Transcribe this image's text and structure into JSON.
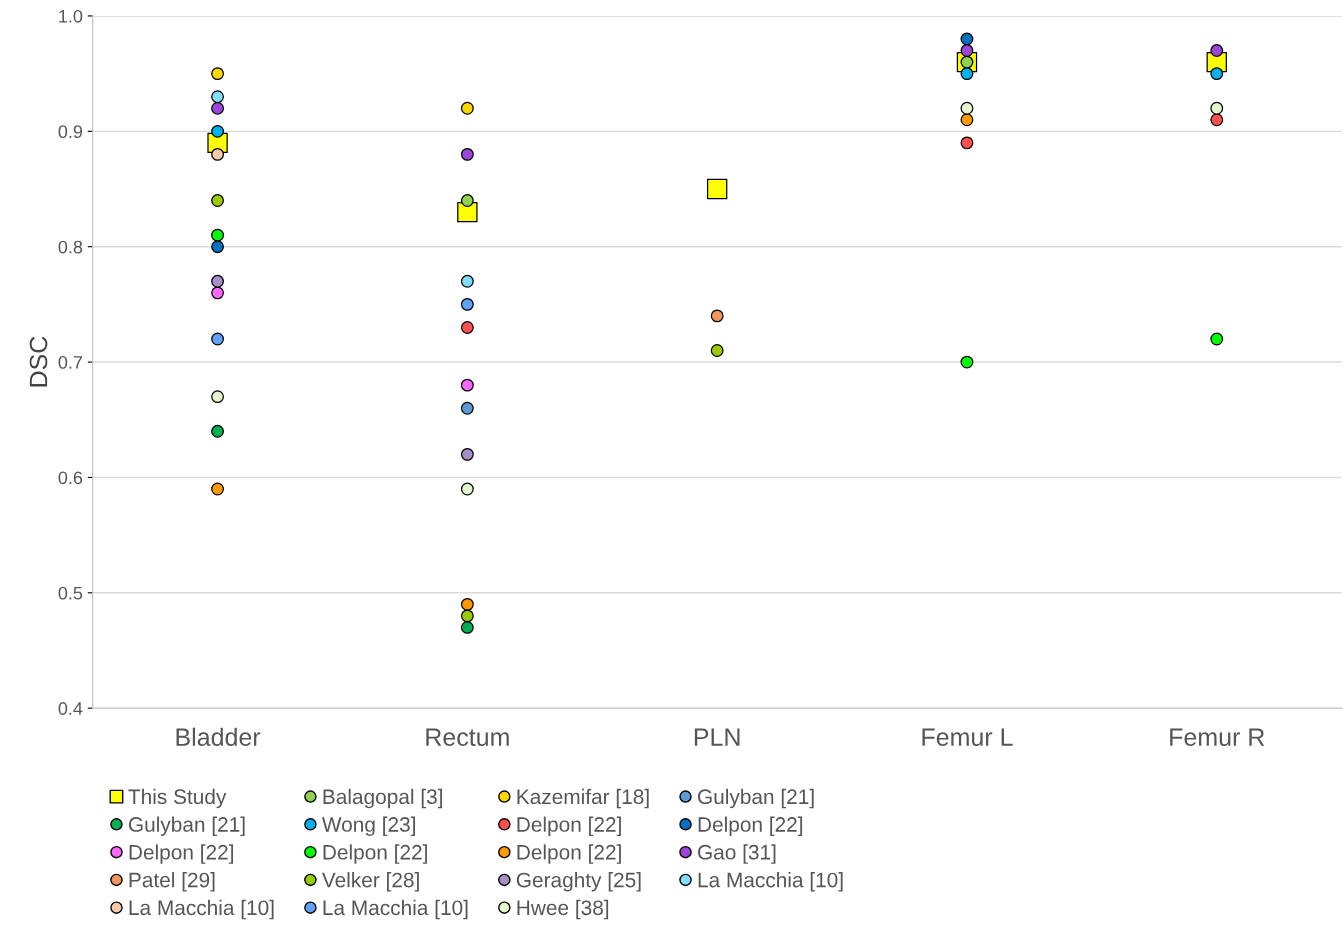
{
  "chart_data": {
    "type": "scatter",
    "ylabel": "DSC",
    "categories": [
      "Bladder",
      "Rectum",
      "PLN",
      "Femur L",
      "Femur R"
    ],
    "ylim": [
      0.4,
      1.0
    ],
    "yticks": [
      0.4,
      0.5,
      0.6,
      0.7,
      0.8,
      0.9,
      {
        "value": 1,
        "label": "1.0"
      }
    ],
    "grid": "y",
    "legend": "bottom",
    "marker": "circle",
    "series": [
      {
        "name": "This Study",
        "color": "#ffff00",
        "marker": "square",
        "values": [
          0.89,
          0.83,
          0.85,
          0.96,
          0.96
        ]
      },
      {
        "name": "Balagopal [3]",
        "color": "#92d050",
        "values": [
          null,
          0.84,
          null,
          0.96,
          null
        ]
      },
      {
        "name": "Kazemifar [18]",
        "color": "#ffd700",
        "values": [
          0.95,
          0.92,
          null,
          null,
          null
        ]
      },
      {
        "name": "Gulyban [21]",
        "color": "#5b9bd5",
        "values": [
          null,
          0.66,
          null,
          null,
          null
        ]
      },
      {
        "name": "Gulyban [21]",
        "color": "#00b050",
        "values": [
          0.64,
          0.47,
          null,
          null,
          null
        ]
      },
      {
        "name": "Wong [23]",
        "color": "#00b0f0",
        "values": [
          0.9,
          null,
          null,
          0.95,
          0.95
        ]
      },
      {
        "name": "Delpon [22]",
        "color": "#ff5050",
        "values": [
          null,
          0.73,
          null,
          0.89,
          0.91
        ]
      },
      {
        "name": "Delpon [22]",
        "color": "#0070c0",
        "values": [
          0.8,
          null,
          null,
          0.98,
          null
        ]
      },
      {
        "name": "Delpon [22]",
        "color": "#ff66ff",
        "values": [
          0.76,
          0.68,
          null,
          null,
          null
        ]
      },
      {
        "name": "Delpon [22]",
        "color": "#00ff00",
        "values": [
          0.81,
          null,
          null,
          0.7,
          0.72
        ]
      },
      {
        "name": "Delpon [22]",
        "color": "#ff9900",
        "values": [
          0.59,
          0.49,
          null,
          0.91,
          null
        ]
      },
      {
        "name": "Gao [31]",
        "color": "#9b45d9",
        "values": [
          0.92,
          0.88,
          null,
          0.97,
          0.97
        ]
      },
      {
        "name": "Patel [29]",
        "color": "#f4955a",
        "values": [
          null,
          null,
          0.74,
          null,
          null
        ]
      },
      {
        "name": "Velker [28]",
        "color": "#99cc00",
        "values": [
          0.84,
          0.48,
          0.71,
          null,
          null
        ]
      },
      {
        "name": "Geraghty [25]",
        "color": "#a68fc6",
        "values": [
          0.77,
          0.62,
          null,
          null,
          null
        ]
      },
      {
        "name": "La Macchia [10]",
        "color": "#80dfff",
        "values": [
          0.93,
          0.77,
          null,
          null,
          null
        ]
      },
      {
        "name": "La Macchia [10]",
        "color": "#f8cbad",
        "values": [
          0.88,
          null,
          null,
          null,
          null
        ]
      },
      {
        "name": "La Macchia [10]",
        "color": "#5ea1f7",
        "values": [
          0.72,
          0.75,
          null,
          null,
          null
        ]
      },
      {
        "name": "Hwee [38]",
        "color": "#e2f8cc",
        "values": [
          0.67,
          0.59,
          null,
          0.92,
          0.92
        ]
      }
    ]
  }
}
